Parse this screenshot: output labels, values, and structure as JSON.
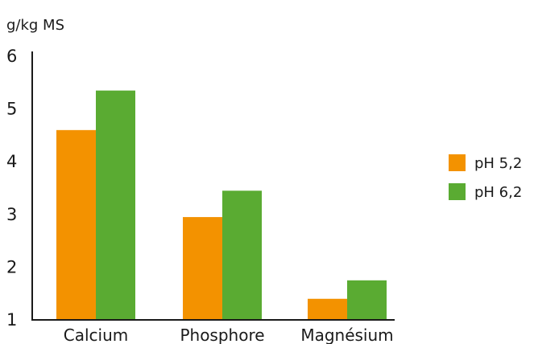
{
  "chart_data": {
    "type": "bar",
    "title": "",
    "ylabel": "g/kg MS",
    "xlabel": "",
    "categories": [
      "Calcium",
      "Phosphore",
      "Magnésium"
    ],
    "series": [
      {
        "name": "pH 5,2",
        "color": "#f39200",
        "values": [
          4.6,
          2.95,
          1.4
        ]
      },
      {
        "name": "pH 6,2",
        "color": "#5aab32",
        "values": [
          5.35,
          3.45,
          1.75
        ]
      }
    ],
    "ylim": [
      1,
      6
    ],
    "yticks": [
      "1",
      "2",
      "3",
      "4",
      "5",
      "6"
    ],
    "grid": false,
    "legend_position": "right"
  }
}
